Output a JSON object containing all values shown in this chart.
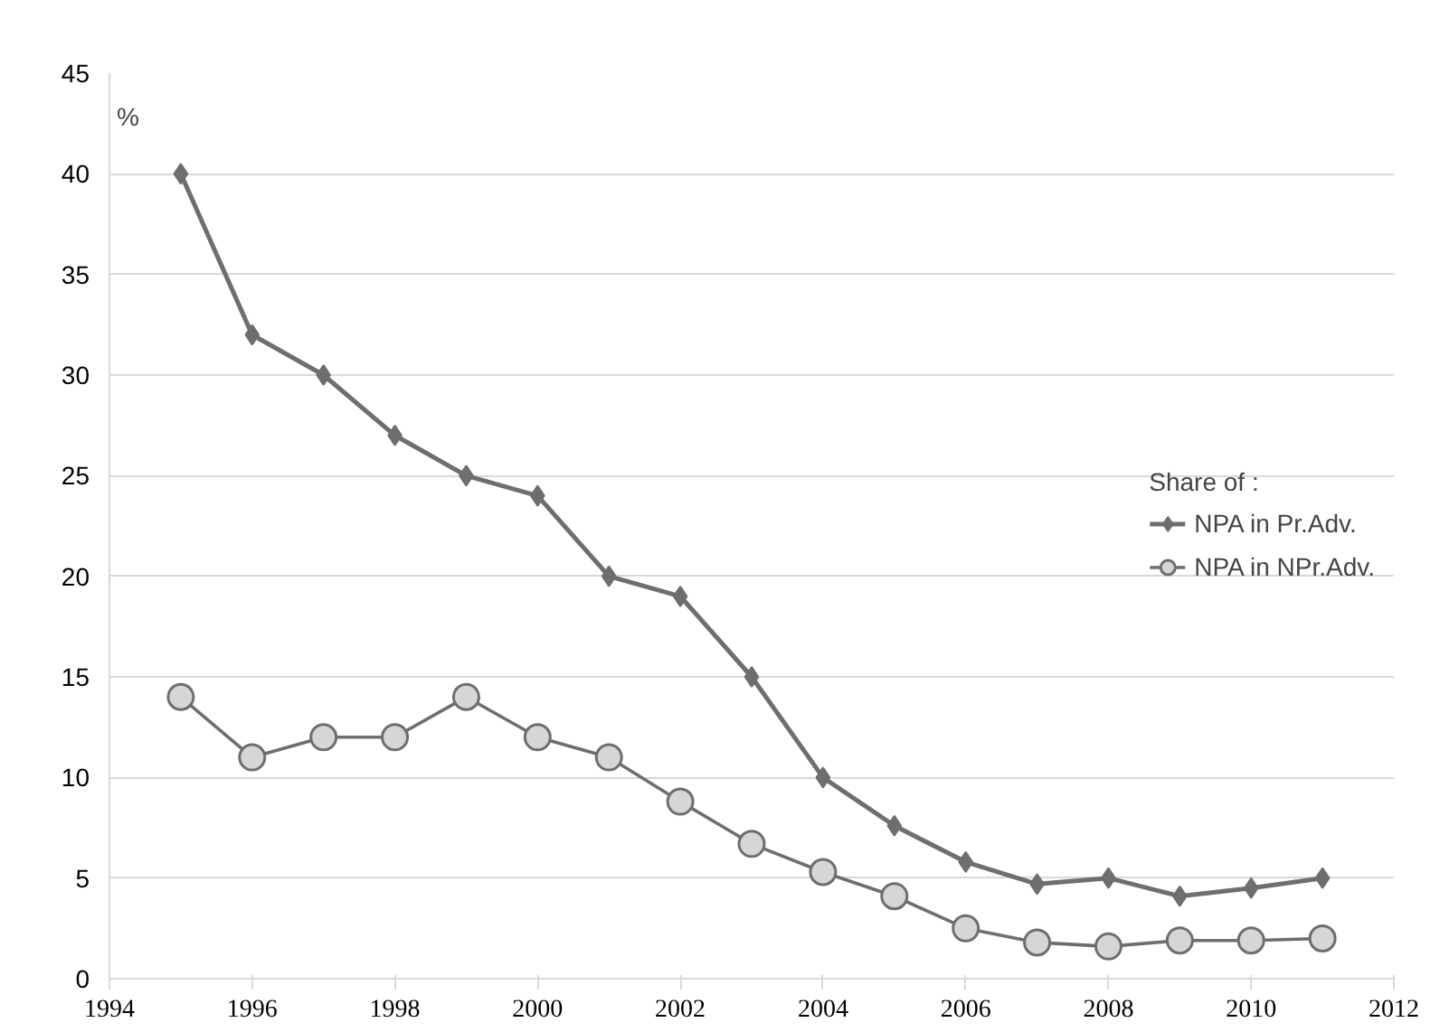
{
  "chart_data": {
    "type": "line",
    "ylabel": "%",
    "legend_title": "Share of :",
    "legend": "right",
    "grid": "y",
    "x": [
      1995,
      1996,
      1997,
      1998,
      1999,
      2000,
      2001,
      2002,
      2003,
      2004,
      2005,
      2006,
      2007,
      2008,
      2009,
      2010,
      2011
    ],
    "xlim": [
      1994,
      2012
    ],
    "xticks": [
      1994,
      1996,
      1998,
      2000,
      2002,
      2004,
      2006,
      2008,
      2010,
      2012
    ],
    "ylim": [
      0,
      45
    ],
    "yticks": [
      0,
      5,
      10,
      15,
      20,
      25,
      30,
      35,
      40,
      45
    ],
    "series": [
      {
        "name": "NPA in Pr.Adv.",
        "color": "#6e6e6e",
        "marker": "diamond",
        "values": [
          40,
          32,
          30,
          27,
          25,
          24,
          20,
          19,
          15,
          10,
          7.6,
          5.8,
          4.7,
          5,
          4.1,
          4.5,
          5
        ]
      },
      {
        "name": "NPA in NPr.Adv.",
        "color": "#6e6e6e",
        "marker": "circle",
        "values": [
          14,
          11,
          12,
          12,
          14,
          12,
          11,
          8.8,
          6.7,
          5.3,
          4.1,
          2.5,
          1.8,
          1.6,
          1.9,
          1.9,
          2.0
        ]
      }
    ]
  }
}
